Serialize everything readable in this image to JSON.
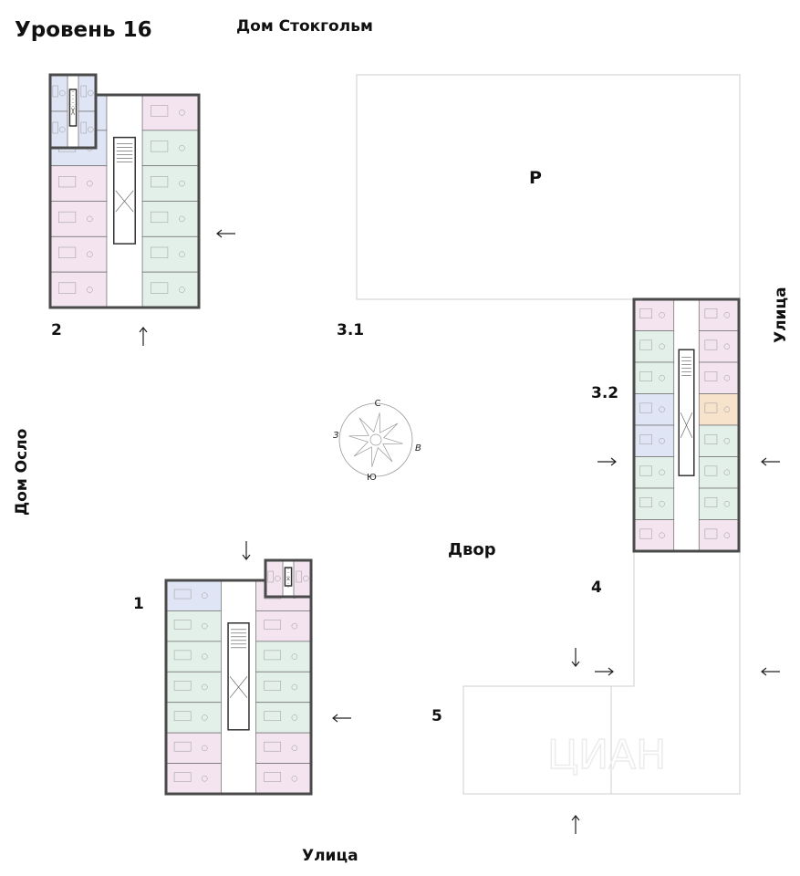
{
  "title": "Уровень 16",
  "neighbors": {
    "top": "Дом Стокгольм",
    "left": "Дом Осло"
  },
  "streets": {
    "right": "Улица",
    "bottom": "Улица"
  },
  "yard": "Двор",
  "parking": "Р",
  "buildings": {
    "b1": "1",
    "b2": "2",
    "b31": "3.1",
    "b32": "3.2",
    "b4": "4",
    "b5": "5"
  },
  "compass": {
    "n": "С",
    "e": "В",
    "s": "Ю",
    "w": "З"
  },
  "watermark": "ЦИАН",
  "colors": {
    "one_room": "#e3f0ea",
    "two_room": "#f3e4ef",
    "three_room": "#dfe5f4",
    "studio": "#f7e2cc",
    "wall": "#4a4a4a"
  }
}
